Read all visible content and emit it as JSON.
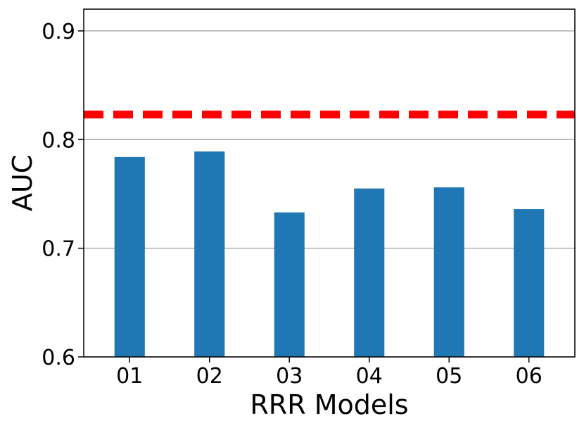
{
  "chart_data": {
    "type": "bar",
    "categories": [
      "01",
      "02",
      "03",
      "04",
      "05",
      "06"
    ],
    "values": [
      0.784,
      0.789,
      0.733,
      0.755,
      0.756,
      0.736
    ],
    "reference_line": {
      "value": 0.823,
      "style": "dashed",
      "color": "#ff0000"
    },
    "title": "",
    "xlabel": "RRR Models",
    "ylabel": "AUC",
    "ylim": [
      0.6,
      0.92
    ],
    "yticks": [
      "0.6",
      "0.7",
      "0.8",
      "0.9"
    ],
    "grid": "y",
    "bar_color": "#1f77b4"
  }
}
